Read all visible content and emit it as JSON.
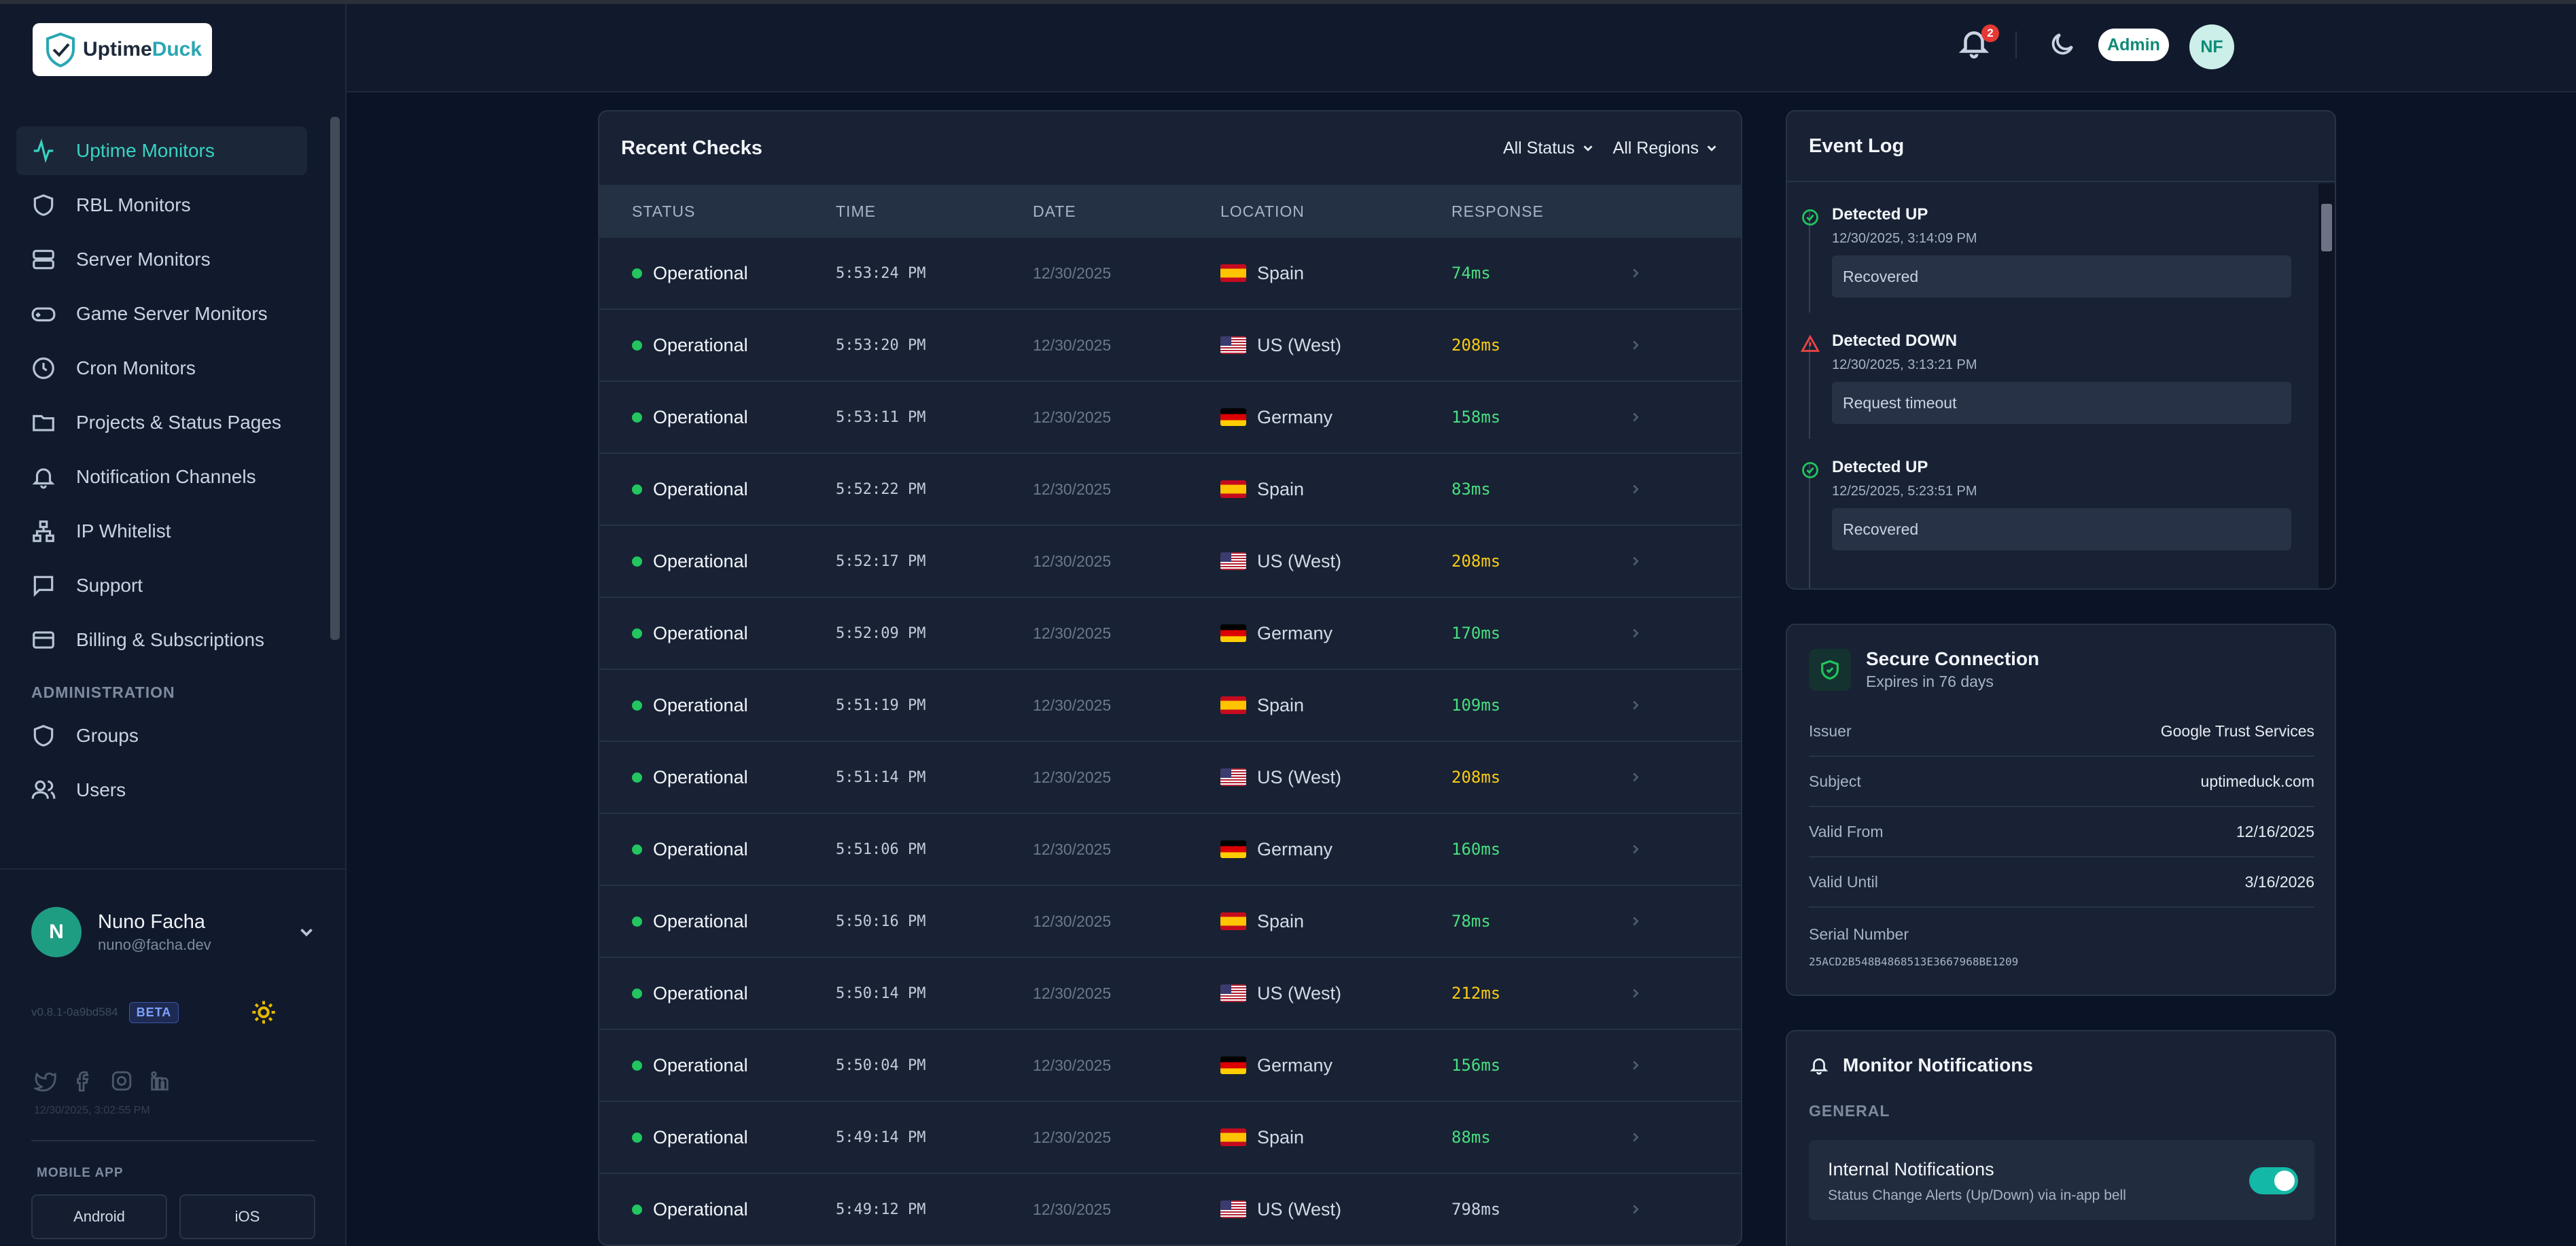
{
  "brand": {
    "name_main": "Uptime",
    "name_accent": "Duck"
  },
  "sidebar": {
    "items": [
      {
        "label": "Uptime Monitors",
        "icon": "activity-icon"
      },
      {
        "label": "RBL Monitors",
        "icon": "shield-icon"
      },
      {
        "label": "Server Monitors",
        "icon": "server-icon"
      },
      {
        "label": "Game Server Monitors",
        "icon": "gamepad-icon"
      },
      {
        "label": "Cron Monitors",
        "icon": "clock-icon"
      },
      {
        "label": "Projects & Status Pages",
        "icon": "folder-icon"
      },
      {
        "label": "Notification Channels",
        "icon": "bell-icon"
      },
      {
        "label": "IP Whitelist",
        "icon": "network-icon"
      },
      {
        "label": "Support",
        "icon": "message-icon"
      },
      {
        "label": "Billing & Subscriptions",
        "icon": "credit-card-icon"
      }
    ],
    "admin_section": "ADMINISTRATION",
    "admin_items": [
      {
        "label": "Groups",
        "icon": "shield-icon"
      },
      {
        "label": "Users",
        "icon": "users-icon"
      }
    ],
    "user": {
      "initial": "N",
      "name": "Nuno Facha",
      "email": "nuno@facha.dev"
    },
    "version": "v0.8.1-0a9bd584",
    "beta": "BETA",
    "timestamp": "12/30/2025, 3:02:55 PM",
    "mobile_label": "MOBILE APP",
    "mobile_buttons": [
      "Android",
      "iOS"
    ]
  },
  "header": {
    "notification_count": "2",
    "role_badge": "Admin",
    "avatar_initials": "NF"
  },
  "checks": {
    "title": "Recent Checks",
    "filters": [
      "All Status",
      "All Regions"
    ],
    "columns": [
      "STATUS",
      "TIME",
      "DATE",
      "LOCATION",
      "RESPONSE"
    ],
    "rows": [
      {
        "status": "Operational",
        "time": "5:53:24 PM",
        "date": "12/30/2025",
        "location": "Spain",
        "flag": "es",
        "response": "74ms",
        "color": "#4ade80"
      },
      {
        "status": "Operational",
        "time": "5:53:20 PM",
        "date": "12/30/2025",
        "location": "US (West)",
        "flag": "us",
        "response": "208ms",
        "color": "#facc15"
      },
      {
        "status": "Operational",
        "time": "5:53:11 PM",
        "date": "12/30/2025",
        "location": "Germany",
        "flag": "de",
        "response": "158ms",
        "color": "#4ade80"
      },
      {
        "status": "Operational",
        "time": "5:52:22 PM",
        "date": "12/30/2025",
        "location": "Spain",
        "flag": "es",
        "response": "83ms",
        "color": "#4ade80"
      },
      {
        "status": "Operational",
        "time": "5:52:17 PM",
        "date": "12/30/2025",
        "location": "US (West)",
        "flag": "us",
        "response": "208ms",
        "color": "#facc15"
      },
      {
        "status": "Operational",
        "time": "5:52:09 PM",
        "date": "12/30/2025",
        "location": "Germany",
        "flag": "de",
        "response": "170ms",
        "color": "#4ade80"
      },
      {
        "status": "Operational",
        "time": "5:51:19 PM",
        "date": "12/30/2025",
        "location": "Spain",
        "flag": "es",
        "response": "109ms",
        "color": "#4ade80"
      },
      {
        "status": "Operational",
        "time": "5:51:14 PM",
        "date": "12/30/2025",
        "location": "US (West)",
        "flag": "us",
        "response": "208ms",
        "color": "#facc15"
      },
      {
        "status": "Operational",
        "time": "5:51:06 PM",
        "date": "12/30/2025",
        "location": "Germany",
        "flag": "de",
        "response": "160ms",
        "color": "#4ade80"
      },
      {
        "status": "Operational",
        "time": "5:50:16 PM",
        "date": "12/30/2025",
        "location": "Spain",
        "flag": "es",
        "response": "78ms",
        "color": "#4ade80"
      },
      {
        "status": "Operational",
        "time": "5:50:14 PM",
        "date": "12/30/2025",
        "location": "US (West)",
        "flag": "us",
        "response": "212ms",
        "color": "#facc15"
      },
      {
        "status": "Operational",
        "time": "5:50:04 PM",
        "date": "12/30/2025",
        "location": "Germany",
        "flag": "de",
        "response": "156ms",
        "color": "#4ade80"
      },
      {
        "status": "Operational",
        "time": "5:49:14 PM",
        "date": "12/30/2025",
        "location": "Spain",
        "flag": "es",
        "response": "88ms",
        "color": "#4ade80"
      },
      {
        "status": "Operational",
        "time": "5:49:12 PM",
        "date": "12/30/2025",
        "location": "US (West)",
        "flag": "us",
        "response": "798ms",
        "color": "#c9d3e2"
      }
    ]
  },
  "event_log": {
    "title": "Event Log",
    "events": [
      {
        "title": "Detected UP",
        "time": "12/30/2025, 3:14:09 PM",
        "message": "Recovered",
        "kind": "up"
      },
      {
        "title": "Detected DOWN",
        "time": "12/30/2025, 3:13:21 PM",
        "message": "Request timeout",
        "kind": "down"
      },
      {
        "title": "Detected UP",
        "time": "12/25/2025, 5:23:51 PM",
        "message": "Recovered",
        "kind": "up"
      }
    ]
  },
  "secure": {
    "title": "Secure Connection",
    "subtitle": "Expires in 76 days",
    "rows": [
      {
        "key": "Issuer",
        "value": "Google Trust Services"
      },
      {
        "key": "Subject",
        "value": "uptimeduck.com"
      },
      {
        "key": "Valid From",
        "value": "12/16/2025"
      },
      {
        "key": "Valid Until",
        "value": "3/16/2026"
      }
    ],
    "serial_label": "Serial Number",
    "serial_value": "25ACD2B548B4868513E3667968BE1209"
  },
  "notifications": {
    "title": "Monitor Notifications",
    "section": "GENERAL",
    "item_title": "Internal Notifications",
    "item_subtitle": "Status Change Alerts (Up/Down) via in-app bell",
    "item_enabled": true
  }
}
